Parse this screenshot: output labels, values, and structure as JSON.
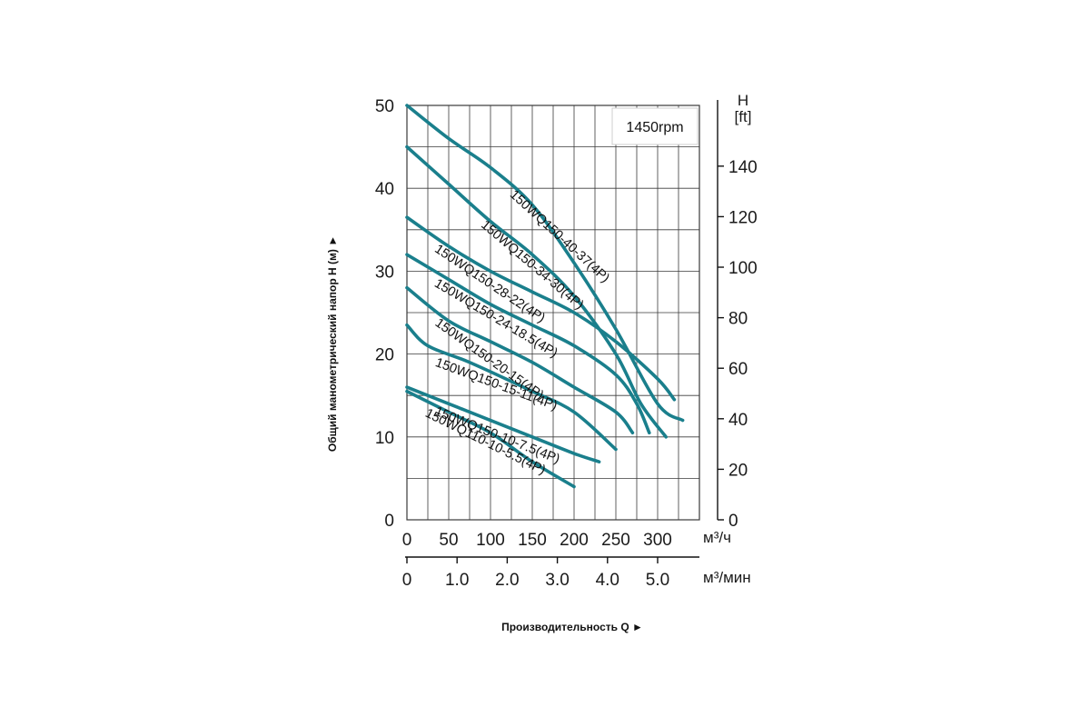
{
  "chart_data": {
    "type": "line",
    "annotation": "1450rpm",
    "x": {
      "primary_unit": "м³/ч",
      "primary_range": [
        0,
        350
      ],
      "primary_ticks": [
        0,
        50,
        100,
        150,
        200,
        250,
        300
      ],
      "primary_grid_step": 25,
      "secondary_unit": "м³/мин",
      "secondary_ticks": [
        "0",
        "1.0",
        "2.0",
        "3.0",
        "4.0",
        "5.0"
      ],
      "secondary_per_primary": 0.016667
    },
    "y": {
      "left_range": [
        0,
        50
      ],
      "left_ticks": [
        0,
        10,
        20,
        30,
        40,
        50
      ],
      "left_grid_step": 5,
      "right_unit_line1": "H",
      "right_unit_line2": "[ft]",
      "right_ticks": [
        0,
        20,
        40,
        60,
        80,
        100,
        120,
        140
      ],
      "ft_per_m": 3.2808
    },
    "xlabel": "Производительность Q ►",
    "ylabel": "Общий манометрический напор H (м) ►",
    "grid": true,
    "series_color": "#1a7f8c",
    "series": [
      {
        "name": "150WQ150-40-37(4P)",
        "points": [
          [
            0,
            50
          ],
          [
            50,
            46
          ],
          [
            100,
            42.5
          ],
          [
            150,
            38
          ],
          [
            200,
            31
          ],
          [
            250,
            23
          ],
          [
            300,
            14
          ],
          [
            330,
            12
          ]
        ]
      },
      {
        "name": "150WQ150-34-30(4P)",
        "points": [
          [
            0,
            45
          ],
          [
            50,
            40.5
          ],
          [
            100,
            36
          ],
          [
            150,
            32
          ],
          [
            200,
            27
          ],
          [
            250,
            20
          ],
          [
            280,
            14
          ],
          [
            310,
            10
          ]
        ]
      },
      {
        "name": "150WQ150-28-22(4P)",
        "points": [
          [
            0,
            36.5
          ],
          [
            50,
            33
          ],
          [
            100,
            30
          ],
          [
            150,
            27.5
          ],
          [
            200,
            25
          ],
          [
            250,
            21.5
          ],
          [
            300,
            17
          ],
          [
            320,
            14.5
          ]
        ]
      },
      {
        "name": "150WQ150-24-18.5(4P)",
        "points": [
          [
            0,
            32
          ],
          [
            50,
            29
          ],
          [
            100,
            26
          ],
          [
            150,
            23.5
          ],
          [
            200,
            21
          ],
          [
            250,
            17.5
          ],
          [
            275,
            14
          ],
          [
            290,
            10.5
          ]
        ]
      },
      {
        "name": "150WQ150-20-15(4P)",
        "points": [
          [
            0,
            28
          ],
          [
            50,
            24
          ],
          [
            100,
            21.5
          ],
          [
            150,
            19
          ],
          [
            200,
            16
          ],
          [
            250,
            13
          ],
          [
            270,
            10.5
          ]
        ]
      },
      {
        "name": "150WQ150-15-11(4P)",
        "points": [
          [
            0,
            23.5
          ],
          [
            25,
            21
          ],
          [
            75,
            19
          ],
          [
            150,
            15.5
          ],
          [
            200,
            13
          ],
          [
            250,
            8.5
          ]
        ]
      },
      {
        "name": "150WQ150-10-7.5(4P)",
        "points": [
          [
            0,
            16
          ],
          [
            50,
            14
          ],
          [
            100,
            12
          ],
          [
            150,
            10
          ],
          [
            200,
            8
          ],
          [
            230,
            7
          ]
        ]
      },
      {
        "name": "150WQ110-10-5.5(4P)",
        "points": [
          [
            0,
            15.5
          ],
          [
            50,
            13
          ],
          [
            100,
            10.5
          ],
          [
            150,
            7
          ],
          [
            200,
            4
          ]
        ]
      }
    ]
  }
}
